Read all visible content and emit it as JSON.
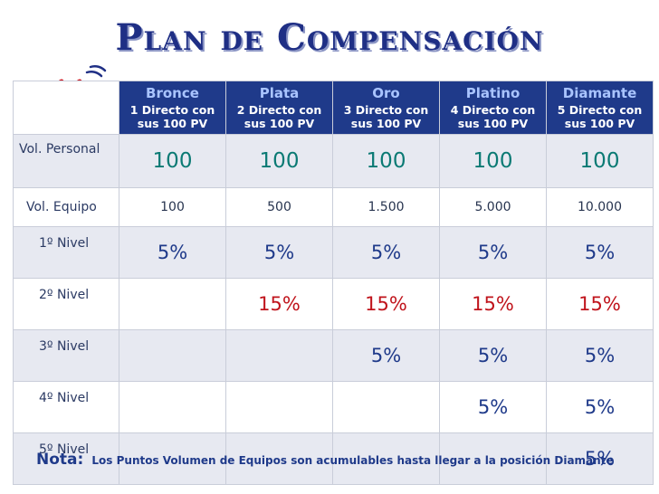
{
  "title": "Plan de Compensación",
  "colors": {
    "header_bg": "#1f3a8a",
    "header_name": "#a9c4ff",
    "value_teal": "#0b7a74",
    "value_red": "#c0141c",
    "title_blue": "#1f2f85"
  },
  "logo": {
    "icon": "ffi-brand-logo-icon"
  },
  "columns": [
    {
      "name": "Bronce",
      "desc1": "1 Directo con",
      "desc2": "sus 100 PV"
    },
    {
      "name": "Plata",
      "desc1": "2 Directo con",
      "desc2": "sus 100 PV"
    },
    {
      "name": "Oro",
      "desc1": "3 Directo con",
      "desc2": "sus 100 PV"
    },
    {
      "name": "Platino",
      "desc1": "4 Directo con",
      "desc2": "sus 100 PV"
    },
    {
      "name": "Diamante",
      "desc1": "5 Directo con",
      "desc2": "sus 100 PV"
    }
  ],
  "rows": [
    {
      "label": "Vol. Personal",
      "values": [
        "100",
        "100",
        "100",
        "100",
        "100"
      ]
    },
    {
      "label": "Vol. Equipo",
      "values": [
        "100",
        "500",
        "1.500",
        "5.000",
        "10.000"
      ]
    },
    {
      "label": "1º Nivel",
      "values": [
        "5%",
        "5%",
        "5%",
        "5%",
        "5%"
      ]
    },
    {
      "label": "2º Nivel",
      "values": [
        "",
        "15%",
        "15%",
        "15%",
        "15%"
      ]
    },
    {
      "label": "3º Nivel",
      "values": [
        "",
        "",
        "5%",
        "5%",
        "5%"
      ]
    },
    {
      "label": "4º Nivel",
      "values": [
        "",
        "",
        "",
        "5%",
        "5%"
      ]
    },
    {
      "label": "5º Nivel",
      "values": [
        "",
        "",
        "",
        "",
        "5%"
      ]
    }
  ],
  "note": {
    "label": "Nota:",
    "text": "Los Puntos Volumen de Equipos son acumulables hasta llegar a la posición Diamante"
  }
}
